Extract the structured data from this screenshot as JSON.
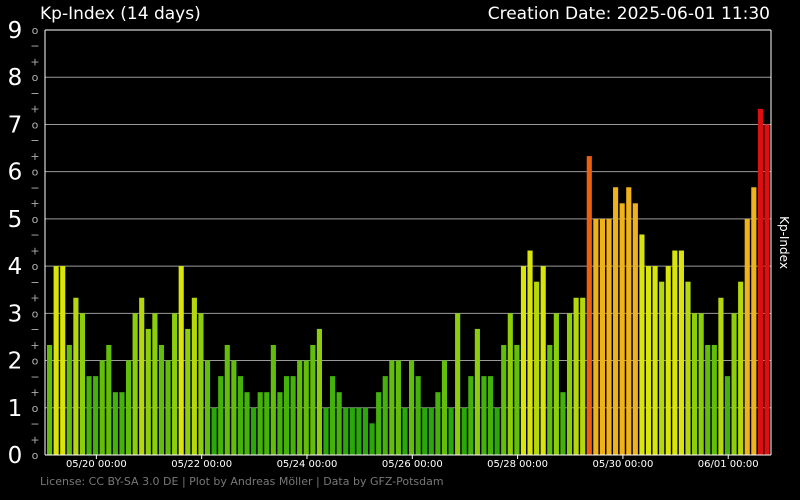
{
  "header": {
    "title": "Kp-Index (14 days)",
    "creation_date": "Creation Date: 2025-06-01 11:30"
  },
  "footer": {
    "license": "License: CC BY-SA 3.0 DE | Plot by Andreas Möller | Data by GFZ-Potsdam"
  },
  "chart_data": {
    "type": "bar",
    "title": "Kp-Index (14 days)",
    "ylabel": "Kp-Index",
    "xlabel": "",
    "ylim": [
      0,
      9
    ],
    "grid": true,
    "y_major_ticks": [
      "0",
      "1",
      "2",
      "3",
      "4",
      "5",
      "6",
      "7",
      "8",
      "9"
    ],
    "y_minor_tick_labels": {
      "plus": "+",
      "zero": "o",
      "minus": "−"
    },
    "x_ticks": [
      {
        "bar_index": 7,
        "label": "05/20 00:00"
      },
      {
        "bar_index": 23,
        "label": "05/22 00:00"
      },
      {
        "bar_index": 39,
        "label": "05/24 00:00"
      },
      {
        "bar_index": 55,
        "label": "05/26 00:00"
      },
      {
        "bar_index": 71,
        "label": "05/28 00:00"
      },
      {
        "bar_index": 87,
        "label": "05/30 00:00"
      },
      {
        "bar_index": 103,
        "label": "06/01 00:00"
      }
    ],
    "bar_interval_hours": 3,
    "values": [
      2.33,
      4.0,
      4.0,
      2.33,
      3.33,
      3.0,
      1.67,
      1.67,
      2.0,
      2.33,
      1.33,
      1.33,
      2.0,
      3.0,
      3.33,
      2.67,
      3.0,
      2.33,
      2.0,
      3.0,
      4.0,
      2.67,
      3.33,
      3.0,
      2.0,
      1.0,
      1.67,
      2.33,
      2.0,
      1.67,
      1.33,
      1.0,
      1.33,
      1.33,
      2.33,
      1.33,
      1.67,
      1.67,
      2.0,
      2.0,
      2.33,
      2.67,
      1.0,
      1.67,
      1.33,
      1.0,
      1.0,
      1.0,
      1.0,
      0.67,
      1.33,
      1.67,
      2.0,
      2.0,
      1.0,
      2.0,
      1.67,
      1.0,
      1.0,
      1.33,
      2.0,
      1.0,
      3.0,
      1.0,
      1.67,
      2.67,
      1.67,
      1.67,
      1.0,
      2.33,
      3.0,
      2.33,
      4.0,
      4.33,
      3.67,
      4.0,
      2.33,
      3.0,
      1.33,
      3.0,
      3.33,
      3.33,
      6.33,
      5.0,
      5.0,
      5.0,
      5.67,
      5.33,
      5.67,
      5.33,
      4.67,
      4.0,
      4.0,
      3.67,
      4.0,
      4.33,
      4.33,
      3.67,
      3.0,
      3.0,
      2.33,
      2.33,
      3.33,
      1.67,
      3.0,
      3.67,
      5.0,
      5.67,
      7.33,
      7.0
    ],
    "colors": {
      "quiet": "#2aa80a",
      "unsettled": "#74c80c",
      "active": "#d8e40a",
      "minor_storm": "#f0b21a",
      "moderate_storm": "#e86010",
      "strong_storm": "#dc1010",
      "grid": "#9a9a9a",
      "minor_label": "#b0b0b0"
    }
  }
}
